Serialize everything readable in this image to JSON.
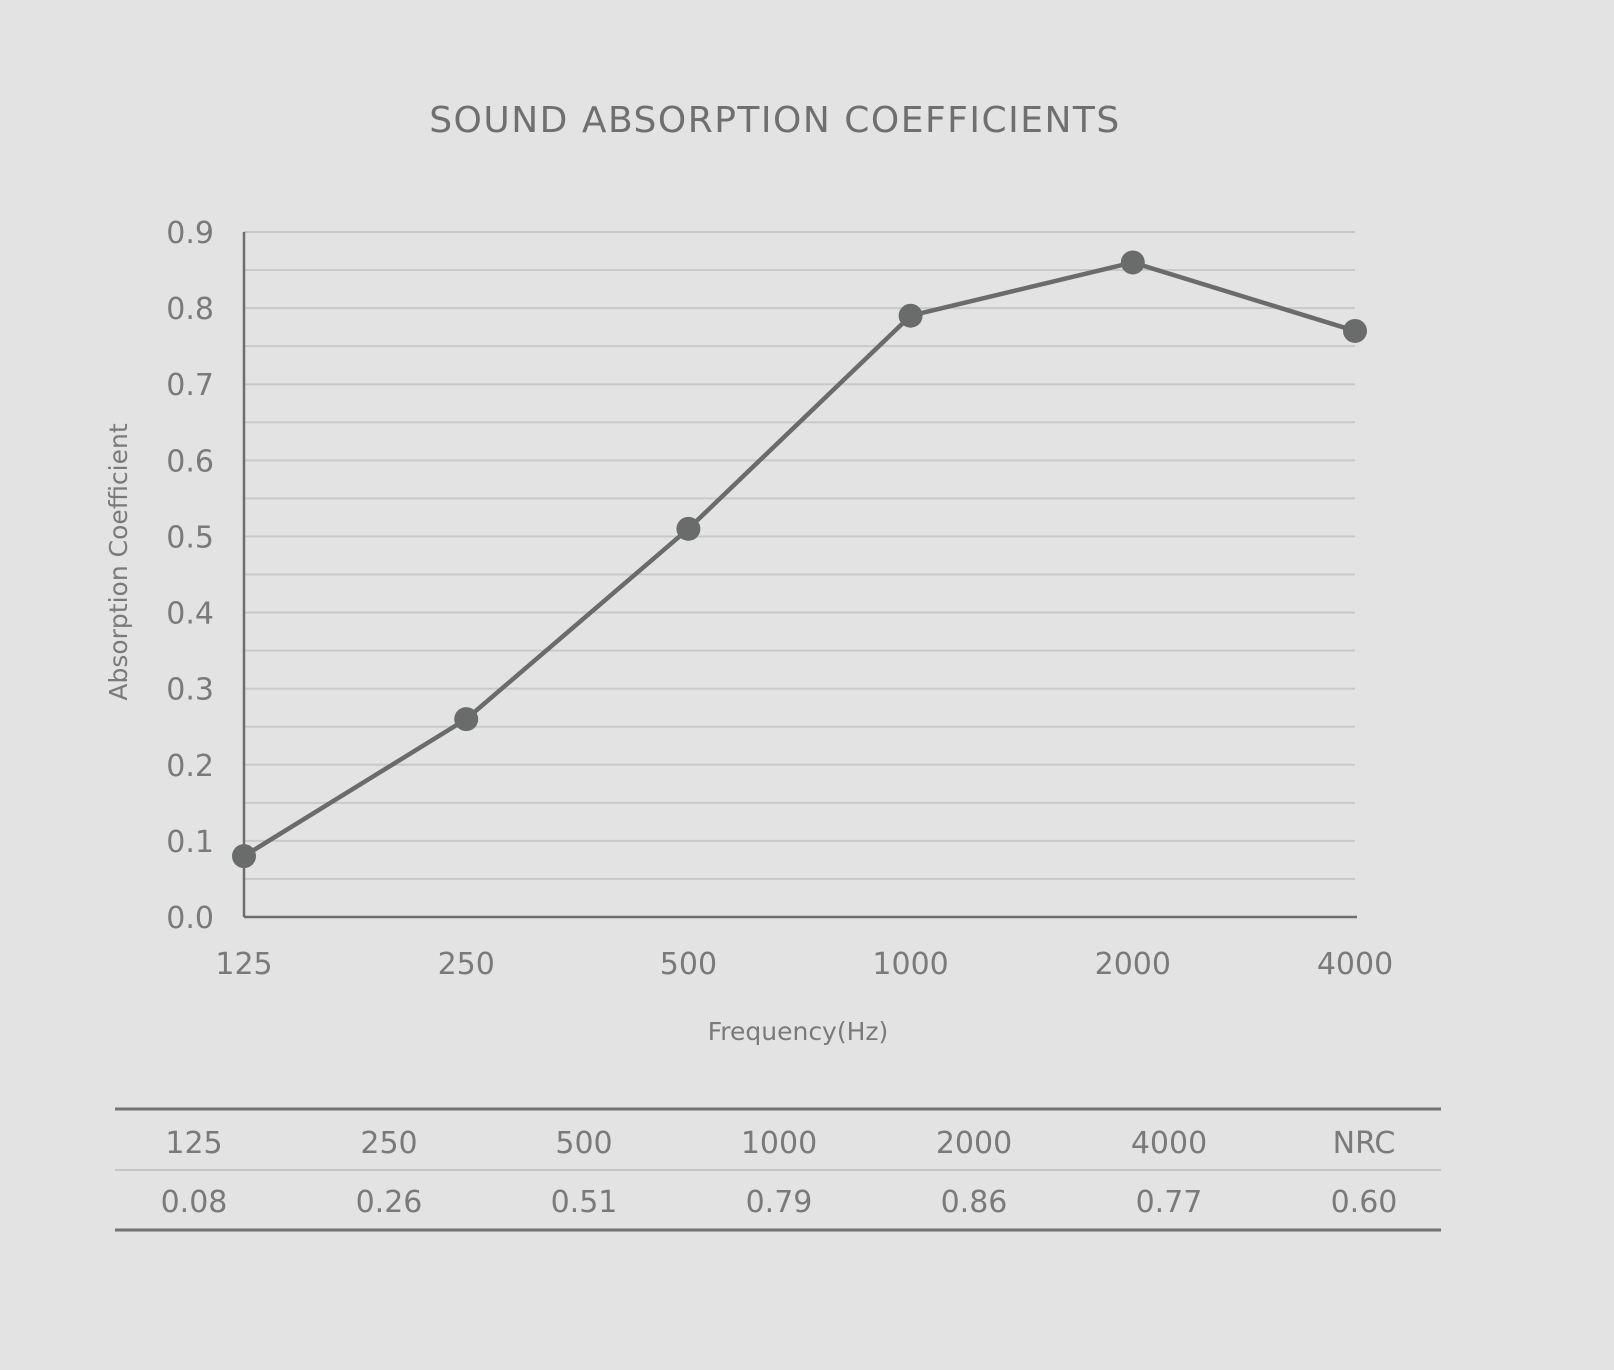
{
  "chart_data": {
    "type": "line",
    "title": "SOUND ABSORPTION COEFFICIENTS",
    "xlabel": "Frequency(Hz)",
    "ylabel": "Absorption Coefficient",
    "categories": [
      "125",
      "250",
      "500",
      "1000",
      "2000",
      "4000"
    ],
    "y_ticks": [
      "0.0",
      "0.1",
      "0.2",
      "0.3",
      "0.4",
      "0.5",
      "0.6",
      "0.7",
      "0.8",
      "0.9"
    ],
    "ylim": [
      0,
      0.9
    ],
    "grid": true,
    "series": [
      {
        "values": [
          0.08,
          0.26,
          0.51,
          0.79,
          0.86,
          0.77
        ]
      }
    ],
    "colors": {
      "line": "#6a6c6b",
      "grid": "#c9c9c9",
      "axis": "#6e6e6e",
      "background": "#e3e3e3"
    }
  },
  "table": {
    "headers": [
      "125",
      "250",
      "500",
      "1000",
      "2000",
      "4000",
      "NRC"
    ],
    "values": [
      "0.08",
      "0.26",
      "0.51",
      "0.79",
      "0.86",
      "0.77",
      "0.60"
    ]
  }
}
